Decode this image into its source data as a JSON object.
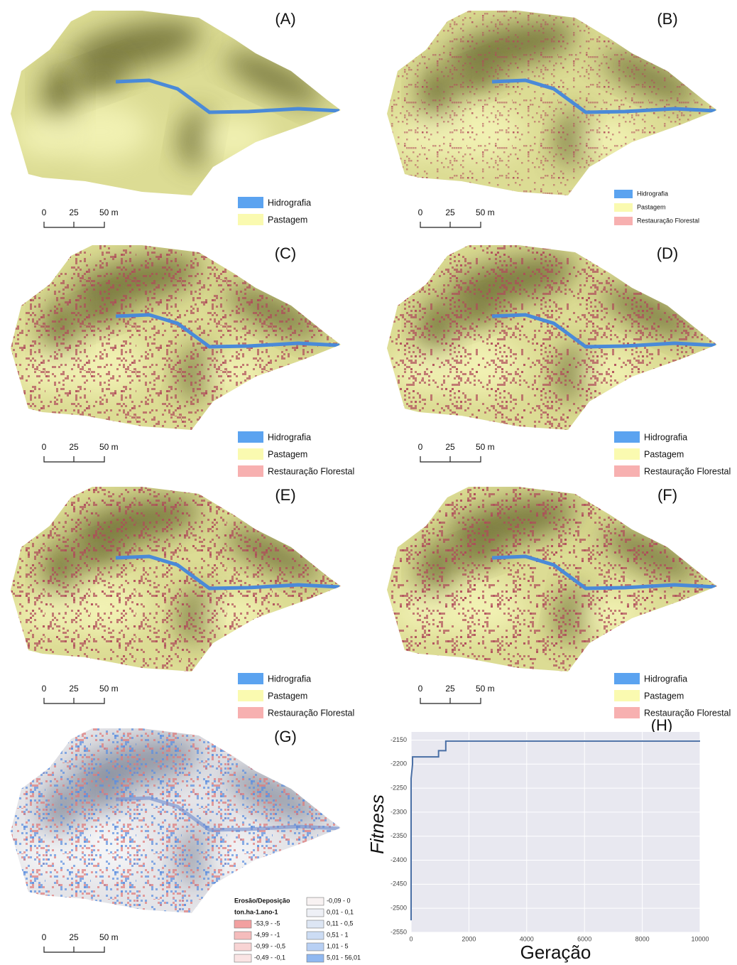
{
  "panels": [
    {
      "label": "(A)",
      "legend": [
        {
          "name": "Hidrografia",
          "color": "#5ba3f0"
        },
        {
          "name": "Pastagem",
          "color": "#fafab0"
        }
      ],
      "scale": [
        "0",
        "25",
        "50 m"
      ]
    },
    {
      "label": "(B)",
      "legend": [
        {
          "name": "Hidrografia",
          "color": "#5ba3f0"
        },
        {
          "name": "Pastagem",
          "color": "#fafab0"
        },
        {
          "name": "Restauração Florestal",
          "color": "#f7b0b0"
        }
      ],
      "scale": [
        "0",
        "25",
        "50 m"
      ]
    },
    {
      "label": "(C)",
      "legend": [
        {
          "name": "Hidrografia",
          "color": "#5ba3f0"
        },
        {
          "name": "Pastagem",
          "color": "#fafab0"
        },
        {
          "name": "Restauração Florestal",
          "color": "#f7b0b0"
        }
      ],
      "scale": [
        "0",
        "25",
        "50 m"
      ]
    },
    {
      "label": "(D)",
      "legend": [
        {
          "name": "Hidrografia",
          "color": "#5ba3f0"
        },
        {
          "name": "Pastagem",
          "color": "#fafab0"
        },
        {
          "name": "Restauração Florestal",
          "color": "#f7b0b0"
        }
      ],
      "scale": [
        "0",
        "25",
        "50 m"
      ]
    },
    {
      "label": "(E)",
      "legend": [
        {
          "name": "Hidrografia",
          "color": "#5ba3f0"
        },
        {
          "name": "Pastagem",
          "color": "#fafab0"
        },
        {
          "name": "Restauração Florestal",
          "color": "#f7b0b0"
        }
      ],
      "scale": [
        "0",
        "25",
        "50 m"
      ]
    },
    {
      "label": "(F)",
      "legend": [
        {
          "name": "Hidrografia",
          "color": "#5ba3f0"
        },
        {
          "name": "Pastagem",
          "color": "#fafab0"
        },
        {
          "name": "Restauração Florestal",
          "color": "#f7b0b0"
        }
      ],
      "scale": [
        "0",
        "25",
        "50 m"
      ]
    },
    {
      "label": "(G)",
      "legend_title": "Erosão/Deposição",
      "legend_unit": "ton.ha-1.ano-1",
      "legend": [
        {
          "name": "-53,9 - -5",
          "color": "#f2a0a0"
        },
        {
          "name": "-4,99 - -1",
          "color": "#f5bcbc"
        },
        {
          "name": "-0,99 - -0,5",
          "color": "#f8d4d4"
        },
        {
          "name": "-0,49 - -0,1",
          "color": "#fae4e4"
        },
        {
          "name": "-0,09 - 0",
          "color": "#f8f2f2"
        },
        {
          "name": "0,01 - 0,1",
          "color": "#eef0f6"
        },
        {
          "name": "0,11 - 0,5",
          "color": "#dde6f4"
        },
        {
          "name": "0,51 - 1",
          "color": "#ccdcf4"
        },
        {
          "name": "1,01 - 5",
          "color": "#b8d0f4"
        },
        {
          "name": "5,01 - 56,01",
          "color": "#90b8f0"
        }
      ],
      "scale": [
        "0",
        "25",
        "50 m"
      ]
    }
  ],
  "chart_data": {
    "type": "line",
    "title": "(H)",
    "x_label": "Geração",
    "y_label": "Fitness",
    "series": [
      {
        "name": "Fitness",
        "color": "#4a6fa5",
        "x": [
          0,
          0,
          50,
          50,
          950,
          950,
          1200,
          1200,
          10000
        ],
        "values": [
          -2525,
          -2230,
          -2200,
          -2185,
          -2185,
          -2172,
          -2172,
          -2152,
          -2152
        ]
      }
    ],
    "xlim": [
      0,
      10000
    ],
    "xticks": [
      0,
      2000,
      4000,
      6000,
      8000,
      10000
    ],
    "ylim": [
      -2550,
      -2133
    ],
    "yticks": [
      -2150,
      -2200,
      -2250,
      -2300,
      -2350,
      -2400,
      -2450,
      -2500,
      -2550
    ],
    "grid": true
  }
}
